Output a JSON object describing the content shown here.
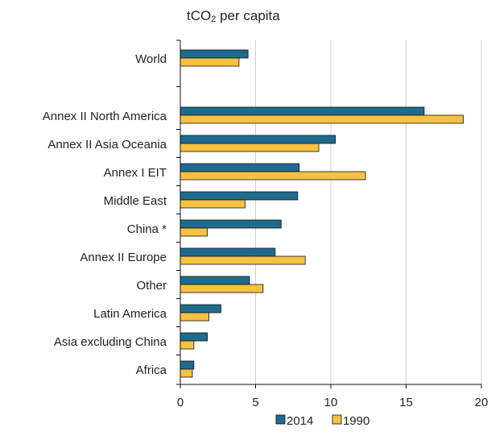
{
  "chart_data": {
    "type": "bar",
    "orientation": "horizontal",
    "title": "tCO₂ per capita",
    "title_parts": {
      "pre": "tCO",
      "sub": "2",
      "post": " per capita"
    },
    "xlabel": "",
    "ylabel": "",
    "xlim": [
      0,
      20
    ],
    "xticks": [
      0,
      5,
      10,
      15,
      20
    ],
    "grid": true,
    "legend_placement": "bottom",
    "categories": [
      "World",
      "Annex II North America",
      "Annex II Asia Oceania",
      "Annex I EIT",
      "Middle East",
      "China *",
      "Annex II Europe",
      "Other",
      "Latin America",
      "Asia excluding China",
      "Africa"
    ],
    "series": [
      {
        "name": "2014",
        "color": "#1f6b8e",
        "values": [
          4.5,
          16.2,
          10.3,
          7.9,
          7.8,
          6.7,
          6.3,
          4.6,
          2.7,
          1.8,
          0.9
        ]
      },
      {
        "name": "1990",
        "color": "#f5c242",
        "values": [
          3.9,
          18.8,
          9.2,
          12.3,
          4.3,
          1.8,
          8.3,
          5.5,
          1.9,
          0.9,
          0.8
        ]
      }
    ]
  }
}
